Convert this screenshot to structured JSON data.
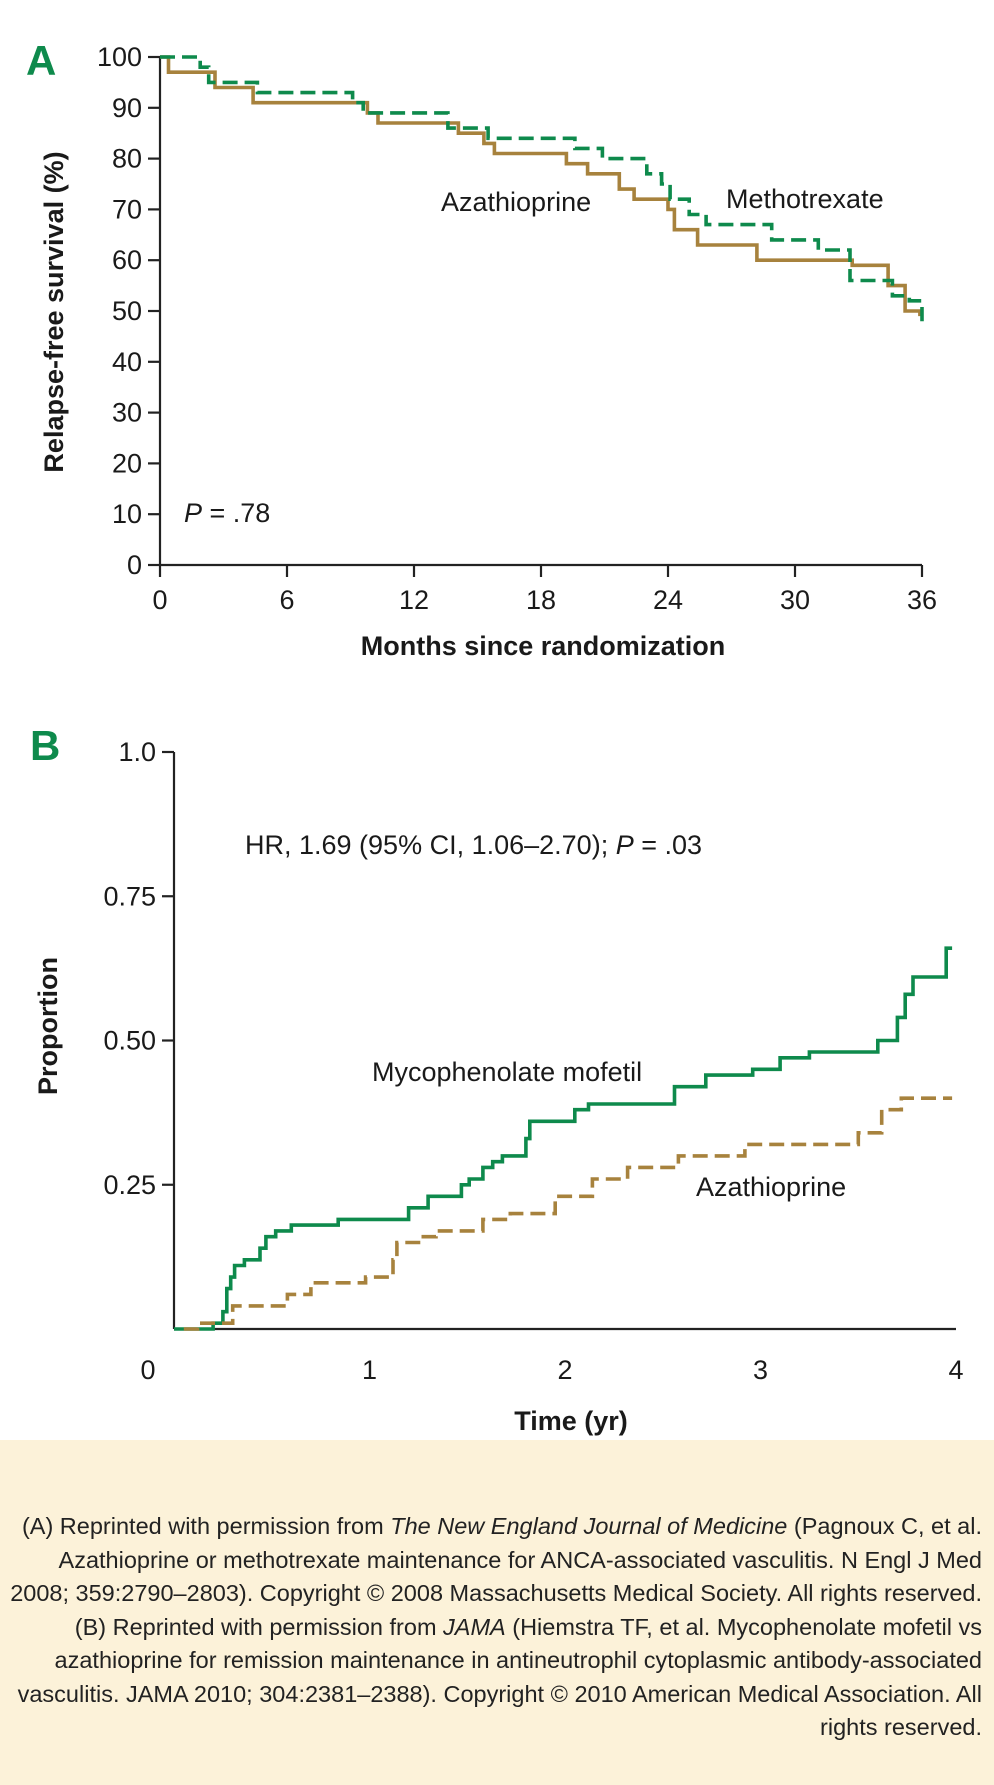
{
  "colors": {
    "brand_green": "#0e8a4c",
    "brown": "#a7823d",
    "caption_bg": "#fcf2d9"
  },
  "chart_data": [
    {
      "panel": "A",
      "type": "line",
      "step": true,
      "xlabel": "Months since randomization",
      "ylabel": "Relapse-free survival (%)",
      "xlim": [
        0,
        36
      ],
      "ylim": [
        0,
        100
      ],
      "xticks": [
        0,
        6,
        12,
        18,
        24,
        30,
        36
      ],
      "yticks": [
        0,
        10,
        20,
        30,
        40,
        50,
        60,
        70,
        80,
        90,
        100
      ],
      "annotation": {
        "prefix": "P",
        "text": " = .78"
      },
      "series": [
        {
          "name": "Azathioprine",
          "style": "solid",
          "color": "#a7823d",
          "points": [
            [
              0,
              100
            ],
            [
              0.4,
              100
            ],
            [
              0.4,
              97
            ],
            [
              2.6,
              97
            ],
            [
              2.6,
              94
            ],
            [
              4.4,
              94
            ],
            [
              4.4,
              91
            ],
            [
              9.8,
              91
            ],
            [
              9.8,
              89
            ],
            [
              10.3,
              89
            ],
            [
              10.3,
              87
            ],
            [
              14.1,
              87
            ],
            [
              14.1,
              85
            ],
            [
              15.3,
              85
            ],
            [
              15.3,
              83
            ],
            [
              15.8,
              83
            ],
            [
              15.8,
              81
            ],
            [
              19.2,
              81
            ],
            [
              19.2,
              79
            ],
            [
              20.2,
              79
            ],
            [
              20.2,
              77
            ],
            [
              21.7,
              77
            ],
            [
              21.7,
              74
            ],
            [
              22.4,
              74
            ],
            [
              22.4,
              72
            ],
            [
              24.0,
              72
            ],
            [
              24.0,
              70
            ],
            [
              24.3,
              70
            ],
            [
              24.3,
              66
            ],
            [
              25.4,
              66
            ],
            [
              25.4,
              63
            ],
            [
              28.2,
              63
            ],
            [
              28.2,
              60
            ],
            [
              32.7,
              60
            ],
            [
              32.7,
              59
            ],
            [
              34.4,
              59
            ],
            [
              34.4,
              55
            ],
            [
              35.2,
              55
            ],
            [
              35.2,
              50
            ],
            [
              35.9,
              50
            ],
            [
              35.9,
              49
            ]
          ]
        },
        {
          "name": "Methotrexate",
          "style": "dashed",
          "color": "#0e8a4c",
          "points": [
            [
              0,
              100
            ],
            [
              1.9,
              100
            ],
            [
              1.9,
              98
            ],
            [
              2.3,
              98
            ],
            [
              2.3,
              95
            ],
            [
              4.6,
              95
            ],
            [
              4.6,
              93
            ],
            [
              9.1,
              93
            ],
            [
              9.1,
              91
            ],
            [
              9.6,
              91
            ],
            [
              9.6,
              89
            ],
            [
              13.6,
              89
            ],
            [
              13.6,
              86
            ],
            [
              15.5,
              86
            ],
            [
              15.5,
              84
            ],
            [
              19.6,
              84
            ],
            [
              19.6,
              82
            ],
            [
              20.9,
              82
            ],
            [
              20.9,
              80
            ],
            [
              23.0,
              80
            ],
            [
              23.0,
              77
            ],
            [
              23.7,
              77
            ],
            [
              23.7,
              75
            ],
            [
              24.1,
              75
            ],
            [
              24.1,
              72
            ],
            [
              25.0,
              72
            ],
            [
              25.0,
              69
            ],
            [
              25.8,
              69
            ],
            [
              25.8,
              67
            ],
            [
              28.9,
              67
            ],
            [
              28.9,
              64
            ],
            [
              31.1,
              64
            ],
            [
              31.1,
              62
            ],
            [
              32.6,
              62
            ],
            [
              32.6,
              56
            ],
            [
              34.6,
              56
            ],
            [
              34.6,
              53
            ],
            [
              35.4,
              53
            ],
            [
              35.4,
              52
            ],
            [
              36.0,
              52
            ],
            [
              36.0,
              48
            ]
          ]
        }
      ]
    },
    {
      "panel": "B",
      "type": "line",
      "step": true,
      "xlabel": "Time (yr)",
      "ylabel": "Proportion",
      "xlim": [
        0,
        4
      ],
      "ylim": [
        0,
        1.0
      ],
      "xticks": [
        0,
        1,
        2,
        3,
        4
      ],
      "yticks": [
        0.25,
        0.5,
        0.75,
        1.0
      ],
      "ytick_labels": [
        "0.25",
        "0.50",
        "0.75",
        "1.0"
      ],
      "annotation": {
        "before": "HR, 1.69 (95% CI, 1.06–2.70); ",
        "prefix": "P",
        "text": " = .03"
      },
      "series": [
        {
          "name": "Mycophenolate mofetil",
          "style": "solid",
          "color": "#0e8a4c",
          "points": [
            [
              0,
              0
            ],
            [
              0.2,
              0
            ],
            [
              0.2,
              0.01
            ],
            [
              0.25,
              0.01
            ],
            [
              0.25,
              0.03
            ],
            [
              0.27,
              0.03
            ],
            [
              0.27,
              0.07
            ],
            [
              0.29,
              0.07
            ],
            [
              0.29,
              0.09
            ],
            [
              0.31,
              0.09
            ],
            [
              0.31,
              0.11
            ],
            [
              0.36,
              0.11
            ],
            [
              0.36,
              0.12
            ],
            [
              0.44,
              0.12
            ],
            [
              0.44,
              0.14
            ],
            [
              0.47,
              0.14
            ],
            [
              0.47,
              0.16
            ],
            [
              0.52,
              0.16
            ],
            [
              0.52,
              0.17
            ],
            [
              0.6,
              0.17
            ],
            [
              0.6,
              0.18
            ],
            [
              0.84,
              0.18
            ],
            [
              0.84,
              0.19
            ],
            [
              1.2,
              0.19
            ],
            [
              1.2,
              0.21
            ],
            [
              1.3,
              0.21
            ],
            [
              1.3,
              0.23
            ],
            [
              1.47,
              0.23
            ],
            [
              1.47,
              0.25
            ],
            [
              1.51,
              0.25
            ],
            [
              1.51,
              0.26
            ],
            [
              1.58,
              0.26
            ],
            [
              1.58,
              0.28
            ],
            [
              1.63,
              0.28
            ],
            [
              1.63,
              0.29
            ],
            [
              1.68,
              0.29
            ],
            [
              1.68,
              0.3
            ],
            [
              1.8,
              0.3
            ],
            [
              1.8,
              0.33
            ],
            [
              1.82,
              0.33
            ],
            [
              1.82,
              0.36
            ],
            [
              2.05,
              0.36
            ],
            [
              2.05,
              0.38
            ],
            [
              2.12,
              0.38
            ],
            [
              2.12,
              0.39
            ],
            [
              2.56,
              0.39
            ],
            [
              2.56,
              0.42
            ],
            [
              2.72,
              0.42
            ],
            [
              2.72,
              0.44
            ],
            [
              2.96,
              0.44
            ],
            [
              2.96,
              0.45
            ],
            [
              3.1,
              0.45
            ],
            [
              3.1,
              0.47
            ],
            [
              3.25,
              0.47
            ],
            [
              3.25,
              0.48
            ],
            [
              3.6,
              0.48
            ],
            [
              3.6,
              0.5
            ],
            [
              3.7,
              0.5
            ],
            [
              3.7,
              0.54
            ],
            [
              3.74,
              0.54
            ],
            [
              3.74,
              0.58
            ],
            [
              3.78,
              0.58
            ],
            [
              3.78,
              0.61
            ],
            [
              3.95,
              0.61
            ],
            [
              3.95,
              0.66
            ],
            [
              3.98,
              0.66
            ]
          ]
        },
        {
          "name": "Azathioprine",
          "style": "dashed",
          "color": "#a7823d",
          "points": [
            [
              0.05,
              0
            ],
            [
              0.12,
              0
            ],
            [
              0.12,
              0.01
            ],
            [
              0.3,
              0.01
            ],
            [
              0.3,
              0.04
            ],
            [
              0.58,
              0.04
            ],
            [
              0.58,
              0.06
            ],
            [
              0.7,
              0.06
            ],
            [
              0.7,
              0.08
            ],
            [
              0.98,
              0.08
            ],
            [
              0.98,
              0.09
            ],
            [
              1.12,
              0.09
            ],
            [
              1.12,
              0.12
            ],
            [
              1.14,
              0.12
            ],
            [
              1.14,
              0.15
            ],
            [
              1.26,
              0.15
            ],
            [
              1.26,
              0.16
            ],
            [
              1.34,
              0.16
            ],
            [
              1.34,
              0.17
            ],
            [
              1.58,
              0.17
            ],
            [
              1.58,
              0.19
            ],
            [
              1.72,
              0.19
            ],
            [
              1.72,
              0.2
            ],
            [
              1.95,
              0.2
            ],
            [
              1.95,
              0.23
            ],
            [
              2.14,
              0.23
            ],
            [
              2.14,
              0.26
            ],
            [
              2.32,
              0.26
            ],
            [
              2.32,
              0.28
            ],
            [
              2.58,
              0.28
            ],
            [
              2.58,
              0.3
            ],
            [
              2.92,
              0.3
            ],
            [
              2.92,
              0.32
            ],
            [
              3.5,
              0.32
            ],
            [
              3.5,
              0.34
            ],
            [
              3.62,
              0.34
            ],
            [
              3.62,
              0.38
            ],
            [
              3.72,
              0.38
            ],
            [
              3.72,
              0.4
            ],
            [
              3.98,
              0.4
            ]
          ]
        }
      ]
    }
  ],
  "caption": {
    "t1": "(A) Reprinted with permission from ",
    "t1_em": "The New England Journal of Medicine",
    "t2": " (Pagnoux C, et al. Azathioprine or methotrexate maintenance for ANCA-associated vasculitis. N Engl J Med 2008; 359:2790–2803). Copyright © 2008 Massachusetts Medical Society. All rights reserved. (B) Reprinted with permission from ",
    "t2_em": "JAMA",
    "t3": " (Hiemstra TF, et al. Mycophenolate mofetil vs azathioprine for remission maintenance in antineutrophil cytoplasmic antibody-associated vasculitis. JAMA 2010; 304:2381–2388). Copyright © 2010 American Medical Association. All rights reserved."
  }
}
